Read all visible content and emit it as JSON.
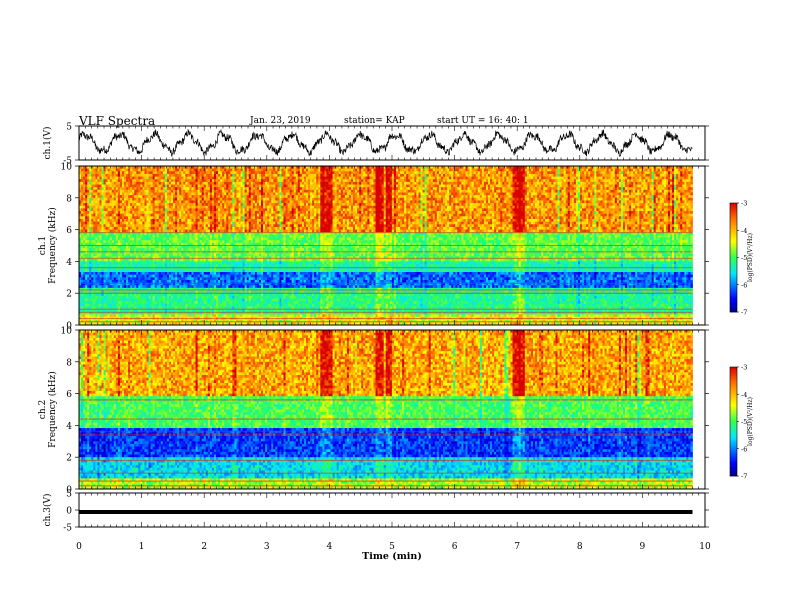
{
  "header": {
    "title": "VLF Spectra",
    "date": "Jan. 23, 2019",
    "station": "station= KAP",
    "start": "start  UT =   16: 40: 1"
  },
  "chart_data": [
    {
      "type": "line",
      "id": "ch1_voltage",
      "ylabel": "ch.1(V)",
      "ylim": [
        -5,
        5
      ],
      "yticks": [
        "5",
        "-5"
      ],
      "xlim": [
        0,
        10
      ],
      "x_end": 9.8,
      "trend": "noisy oscillation, amplitude about 2.5 V, period about 0.55 min, centered near 0 V"
    },
    {
      "type": "heatmap",
      "id": "ch1_spectrogram",
      "ylabel": "ch.1\nFrequency (kHz)",
      "ylim": [
        0,
        10
      ],
      "yticks": [
        "0",
        "2",
        "4",
        "6",
        "8",
        "10"
      ],
      "xlim": [
        0,
        10
      ],
      "x_end": 9.8,
      "colorbar": {
        "label": "log(PSD)(V²/Hz)",
        "ticks": [
          "-3",
          "-4",
          "-5",
          "-6",
          "-7"
        ],
        "range": [
          -7,
          -3
        ]
      },
      "bands": [
        {
          "from": 5.8,
          "to": 10.0,
          "level": -3.8,
          "jitter": 0.55
        },
        {
          "from": 4.0,
          "to": 5.8,
          "level": -4.9,
          "jitter": 0.35
        },
        {
          "from": 3.4,
          "to": 4.0,
          "level": -5.3,
          "jitter": 0.3
        },
        {
          "from": 2.4,
          "to": 3.4,
          "level": -6.1,
          "jitter": 0.45
        },
        {
          "from": 0.6,
          "to": 2.4,
          "level": -5.2,
          "jitter": 0.35
        },
        {
          "from": 0.0,
          "to": 0.6,
          "level": -4.4,
          "jitter": 0.5
        }
      ],
      "lines_khz": [
        0.2,
        0.4,
        0.8,
        1.0,
        2.0,
        2.2,
        2.6,
        3.6,
        4.2,
        4.6,
        5.0,
        5.8
      ],
      "strong_bursts_min": [
        3.9,
        4.0,
        4.8,
        4.95,
        7.0,
        7.05
      ]
    },
    {
      "type": "heatmap",
      "id": "ch2_spectrogram",
      "ylabel": "ch.2\nFrequency (kHz)",
      "ylim": [
        0,
        10
      ],
      "yticks": [
        "0",
        "2",
        "4",
        "6",
        "8",
        "10"
      ],
      "xlim": [
        0,
        10
      ],
      "x_end": 9.8,
      "colorbar": {
        "label": "log(PSD)(V²/Hz)",
        "ticks": [
          "-3",
          "-4",
          "-5",
          "-6",
          "-7"
        ],
        "range": [
          -7,
          -3
        ]
      },
      "bands": [
        {
          "from": 5.8,
          "to": 10.0,
          "level": -3.9,
          "jitter": 0.55
        },
        {
          "from": 3.8,
          "to": 5.8,
          "level": -5.0,
          "jitter": 0.35
        },
        {
          "from": 2.0,
          "to": 3.8,
          "level": -6.3,
          "jitter": 0.4
        },
        {
          "from": 0.6,
          "to": 2.0,
          "level": -5.6,
          "jitter": 0.4
        },
        {
          "from": 0.0,
          "to": 0.6,
          "level": -4.6,
          "jitter": 0.5
        }
      ],
      "lines_khz": [
        0.2,
        0.5,
        1.0,
        1.8,
        3.4,
        3.6,
        4.4,
        5.6
      ],
      "strong_bursts_min": [
        3.9,
        4.0,
        4.8,
        4.95,
        7.0,
        7.05
      ]
    },
    {
      "type": "line",
      "id": "ch3_voltage",
      "ylabel": "ch.3(V)",
      "ylim": [
        -5,
        5
      ],
      "yticks": [
        "5",
        "0",
        "-5"
      ],
      "xlim": [
        0,
        10
      ],
      "x_end": 9.8,
      "constant_value": 0,
      "xlabel": "Time (min)",
      "xticks": [
        "0",
        "1",
        "2",
        "3",
        "4",
        "5",
        "6",
        "7",
        "8",
        "9",
        "10"
      ]
    }
  ]
}
